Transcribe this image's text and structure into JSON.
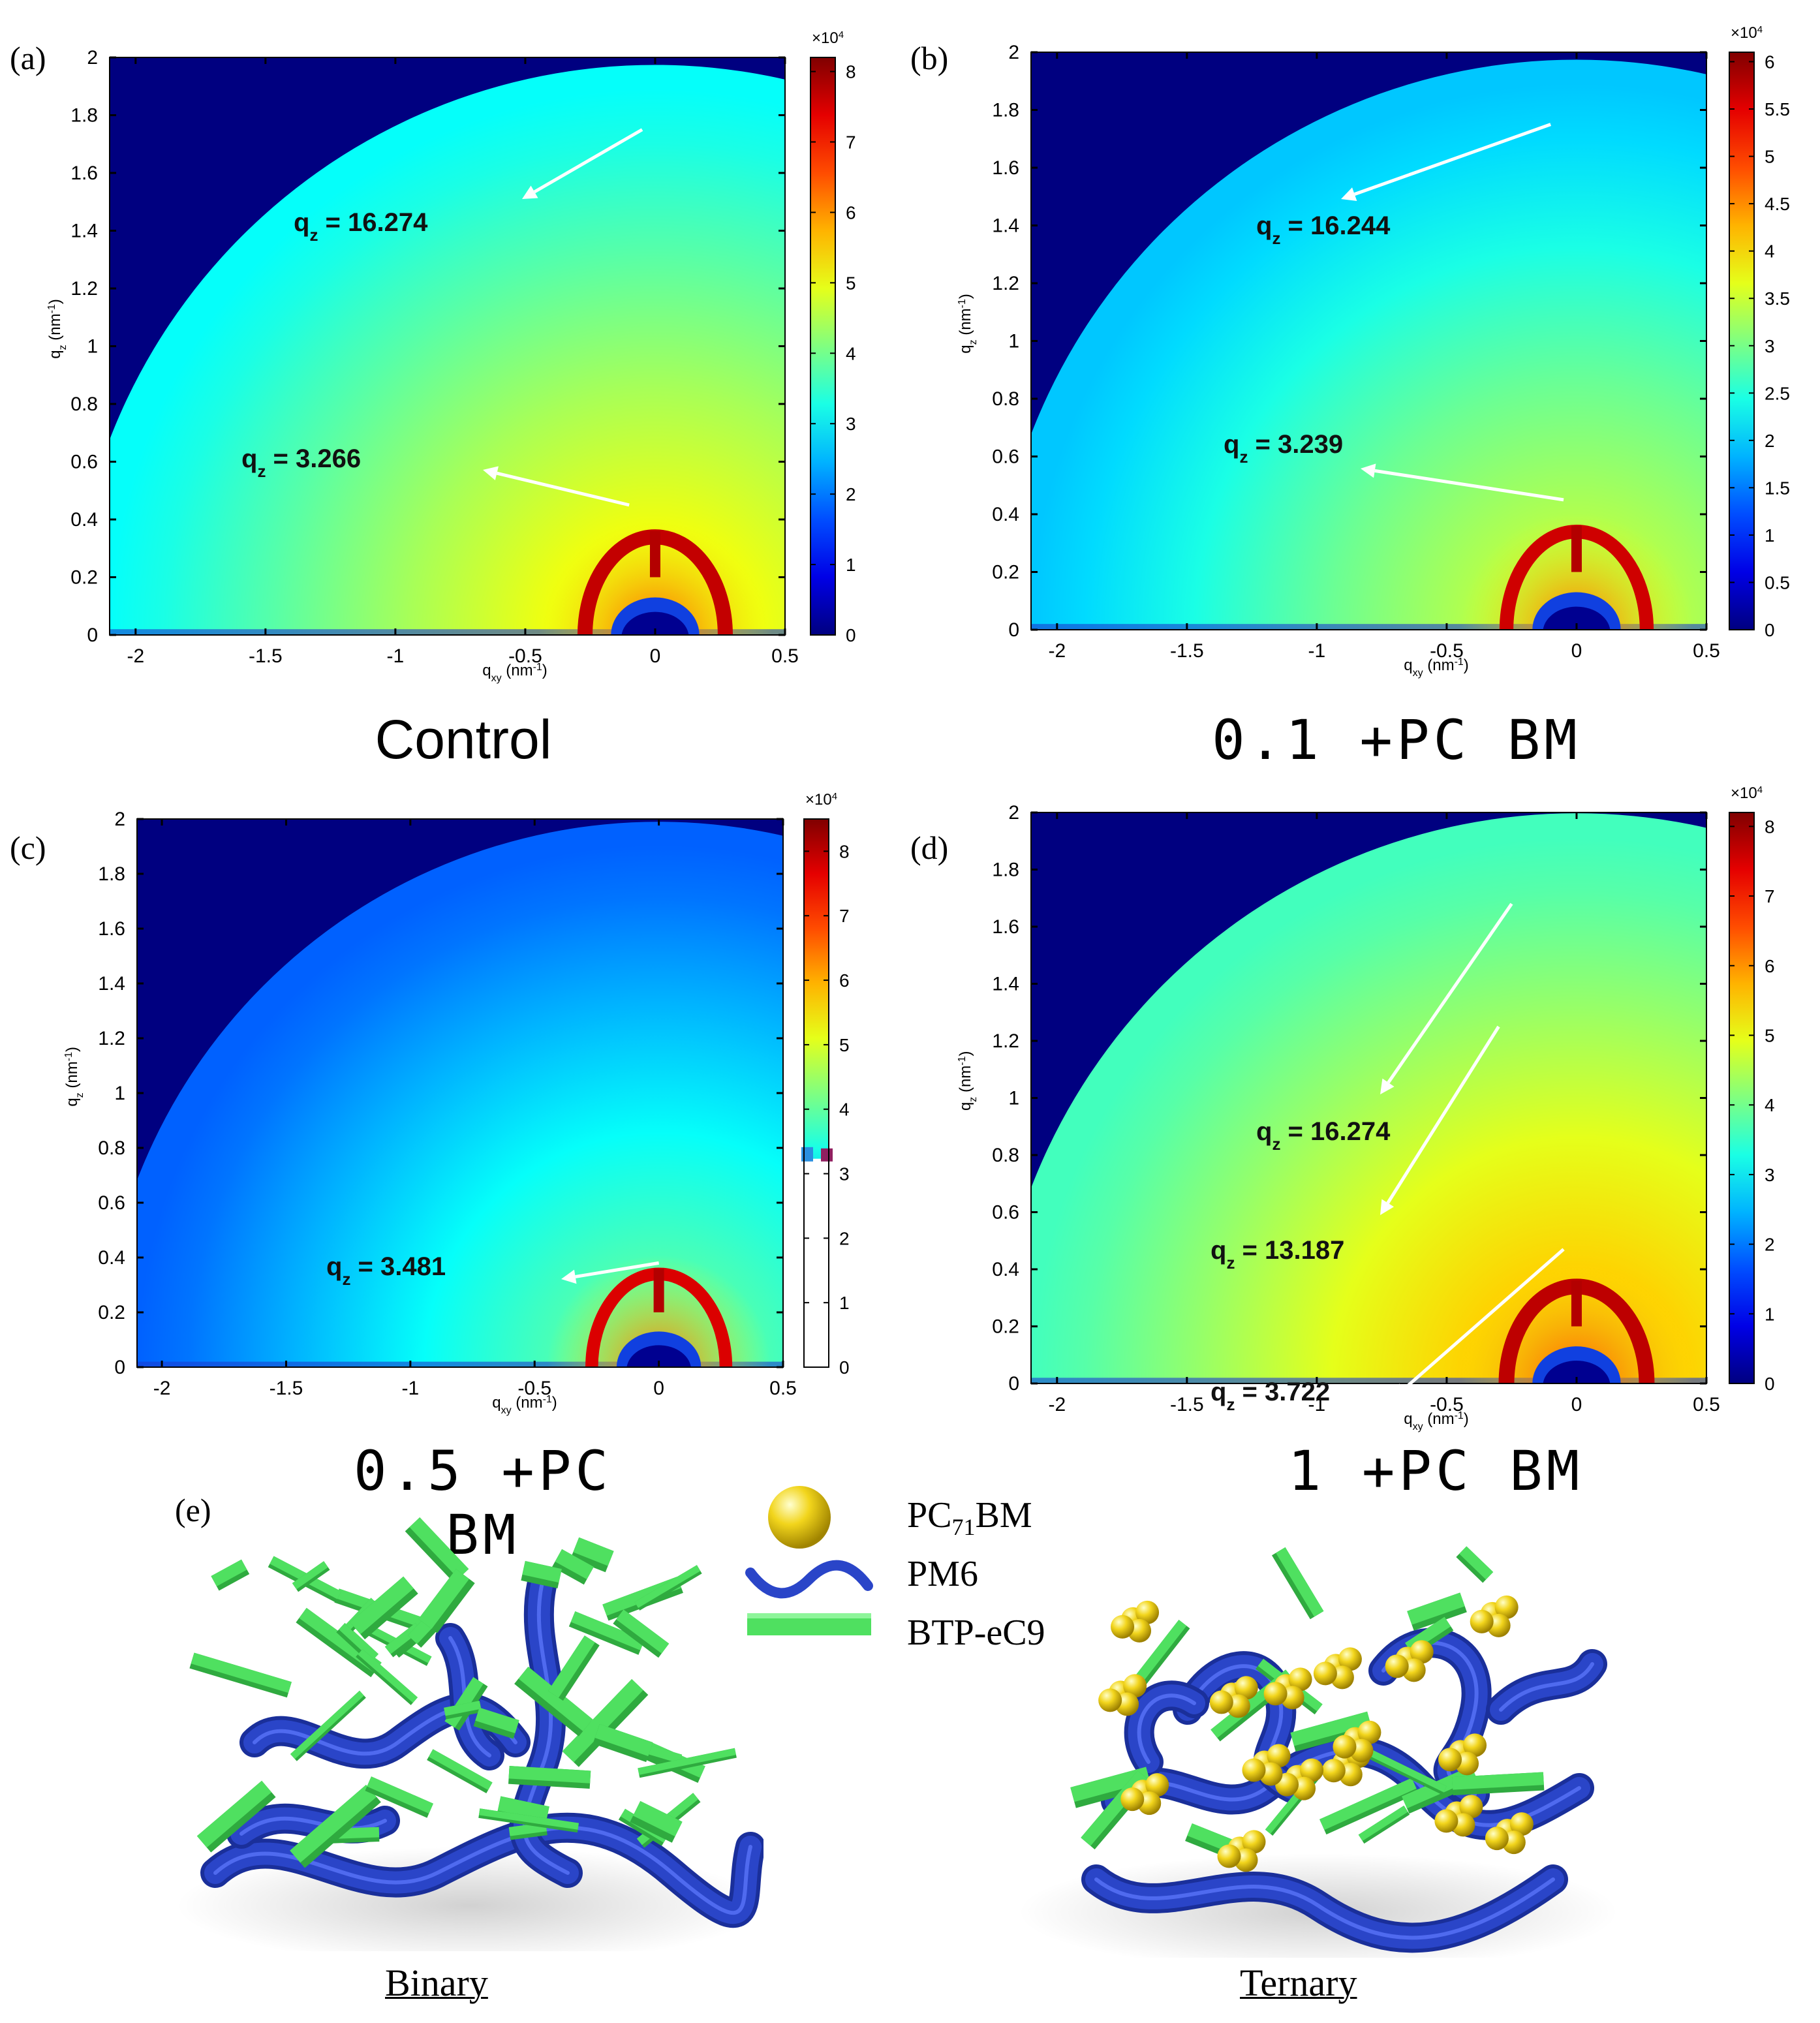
{
  "panels": [
    {
      "label": "(a)",
      "caption": "Control",
      "x_axis_label": "q",
      "x_axis_sub": "xy",
      "x_axis_unit": " (nm",
      "y_axis_label": "q",
      "y_axis_sub": "z",
      "y_axis_unit": " (nm",
      "unit_sup": "-1",
      "unit_close": ")",
      "colorbar_multiplier": "×10",
      "colorbar_exp": "4",
      "annotations": [
        "q",
        "q"
      ]
    },
    {
      "label": "(b)",
      "caption": "0.1 +PC BM",
      "x_axis_label": "q",
      "x_axis_sub": "xy",
      "x_axis_unit": " (nm",
      "y_axis_label": "q",
      "y_axis_sub": "z",
      "y_axis_unit": " (nm",
      "unit_sup": "-1",
      "unit_close": ")",
      "colorbar_multiplier": "×10",
      "colorbar_exp": "4"
    },
    {
      "label": "(c)",
      "caption": "0.5 +PC BM",
      "x_axis_label": "q",
      "x_axis_sub": "xy",
      "x_axis_unit": " (nm",
      "y_axis_label": "q",
      "y_axis_sub": "z",
      "y_axis_unit": " (nm",
      "unit_sup": "-1",
      "unit_close": ")",
      "colorbar_multiplier": "×10",
      "colorbar_exp": "4"
    },
    {
      "label": "(d)",
      "caption": "1 +PC BM",
      "x_axis_label": "q",
      "x_axis_sub": "xy",
      "x_axis_unit": " (nm",
      "y_axis_label": "q",
      "y_axis_sub": "z",
      "y_axis_unit": " (nm",
      "unit_sup": "-1",
      "unit_close": ")",
      "colorbar_multiplier": "×10",
      "colorbar_exp": "4"
    }
  ],
  "chart_data": [
    {
      "type": "heatmap",
      "panel": "(a)",
      "xlim": [
        -2.1,
        0.5
      ],
      "ylim": [
        0,
        2
      ],
      "x_ticks": [
        -2,
        -1.5,
        -1,
        -0.5,
        0,
        0.5
      ],
      "y_ticks": [
        0,
        0.2,
        0.4,
        0.6,
        0.8,
        1,
        1.2,
        1.4,
        1.6,
        1.8,
        2
      ],
      "colorbar_ticks": [
        0,
        1,
        2,
        3,
        4,
        5,
        6,
        7,
        8
      ],
      "colorbar_range": [
        0,
        8.2
      ],
      "colormap": "jet",
      "ring_intensity": 0.95,
      "annotations": [
        {
          "prefix": "q",
          "sub": "z",
          "text": " = 16.274",
          "target": [
            -0.05,
            1.75
          ]
        },
        {
          "prefix": "q",
          "sub": "z",
          "text": " = 3.266",
          "target": [
            -0.1,
            0.45
          ]
        }
      ]
    },
    {
      "type": "heatmap",
      "panel": "(b)",
      "xlim": [
        -2.1,
        0.5
      ],
      "ylim": [
        0,
        2
      ],
      "x_ticks": [
        -2,
        -1.5,
        -1,
        -0.5,
        0,
        0.5
      ],
      "y_ticks": [
        0,
        0.2,
        0.4,
        0.6,
        0.8,
        1,
        1.2,
        1.4,
        1.6,
        1.8,
        2
      ],
      "colorbar_ticks": [
        0,
        0.5,
        1,
        1.5,
        2,
        2.5,
        3,
        3.5,
        4,
        4.5,
        5,
        5.5,
        6
      ],
      "colorbar_range": [
        0,
        6.1
      ],
      "colormap": "jet",
      "ring_intensity": 0.85,
      "annotations": [
        {
          "prefix": "q",
          "sub": "z",
          "text": " = 16.244",
          "target": [
            -0.1,
            1.75
          ]
        },
        {
          "prefix": "q",
          "sub": "z",
          "text": " = 3.239",
          "target": [
            -0.05,
            0.45
          ]
        }
      ]
    },
    {
      "type": "heatmap",
      "panel": "(c)",
      "xlim": [
        -2.1,
        0.5
      ],
      "ylim": [
        0,
        2
      ],
      "x_ticks": [
        -2,
        -1.5,
        -1,
        -0.5,
        0,
        0.5
      ],
      "y_ticks": [
        0,
        0.2,
        0.4,
        0.6,
        0.8,
        1,
        1.2,
        1.4,
        1.6,
        1.8,
        2
      ],
      "colorbar_ticks": [
        0,
        1,
        2,
        3,
        4,
        5,
        6,
        7,
        8
      ],
      "colorbar_range": [
        0,
        8.5
      ],
      "colormap": "jet",
      "ring_intensity": 0.75,
      "annotations": [
        {
          "prefix": "q",
          "sub": "z",
          "text": " = 3.481",
          "target": [
            0,
            0.38
          ]
        }
      ]
    },
    {
      "type": "heatmap",
      "panel": "(d)",
      "xlim": [
        -2.1,
        0.5
      ],
      "ylim": [
        0,
        2
      ],
      "x_ticks": [
        -2,
        -1.5,
        -1,
        -0.5,
        0,
        0.5
      ],
      "y_ticks": [
        0,
        0.2,
        0.4,
        0.6,
        0.8,
        1,
        1.2,
        1.4,
        1.6,
        1.8,
        2
      ],
      "colorbar_ticks": [
        0,
        1,
        2,
        3,
        4,
        5,
        6,
        7,
        8
      ],
      "colorbar_range": [
        0,
        8.2
      ],
      "colormap": "jet",
      "ring_intensity": 1.0,
      "annotations": [
        {
          "prefix": "q",
          "sub": "z",
          "text": " = 16.274",
          "target": [
            -0.25,
            1.68
          ]
        },
        {
          "prefix": "q",
          "sub": "z",
          "text": " = 13.187",
          "target": [
            -0.3,
            1.25
          ]
        },
        {
          "prefix": "q",
          "sub": "z",
          "text": " = 3.722",
          "target": [
            -0.05,
            0.47
          ]
        }
      ]
    }
  ],
  "panel_e": {
    "label": "(e)",
    "legend": [
      {
        "name": "PC",
        "sub": "71",
        "suffix": "BM",
        "color": "#f2d51c"
      },
      {
        "name": "PM6",
        "sub": "",
        "suffix": "",
        "color": "#2a45c8"
      },
      {
        "name": "BTP-eC9",
        "sub": "",
        "suffix": "",
        "color": "#4fe060"
      }
    ],
    "models": [
      {
        "label": "Binary"
      },
      {
        "label": "Ternary"
      }
    ]
  },
  "colors": {
    "pm6": "#2a45c8",
    "btp": "#4fe060",
    "pcbm": "#f2d51c",
    "background_dark": "#000080"
  }
}
